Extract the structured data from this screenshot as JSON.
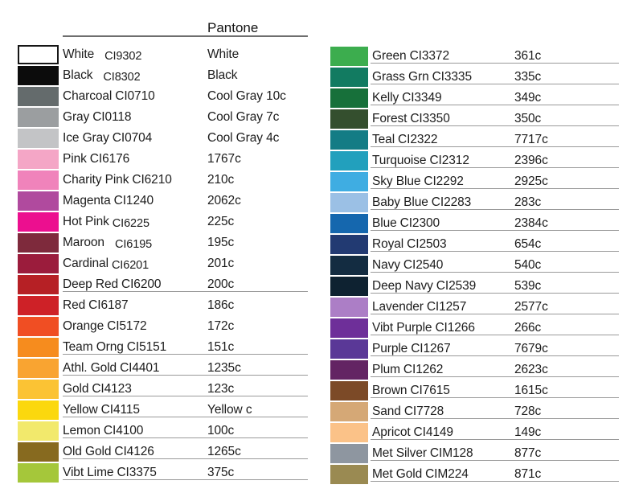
{
  "header": {
    "pantone_label": "Pantone"
  },
  "chart_data": {
    "type": "table",
    "title": "Pantone",
    "columns": [
      "swatch",
      "name",
      "ci_code",
      "pantone"
    ],
    "left_column": [
      {
        "name": "White",
        "code": "CI9302",
        "pantone": "White",
        "hex": "#ffffff",
        "border": true,
        "rule": false,
        "wide_gap": true,
        "code_drop": true
      },
      {
        "name": "Black",
        "code": "CI8302",
        "pantone": "Black",
        "hex": "#0c0c0c",
        "border": false,
        "rule": false,
        "wide_gap": true,
        "code_drop": true
      },
      {
        "name": "Charcoal",
        "code": "CI0710",
        "pantone": "Cool Gray 10c",
        "hex": "#646b6c",
        "border": false,
        "rule": false,
        "wide_gap": false,
        "code_drop": false
      },
      {
        "name": "Gray",
        "code": "CI0118",
        "pantone": "Cool Gray 7c",
        "hex": "#9b9ea0",
        "border": false,
        "rule": false,
        "wide_gap": false,
        "code_drop": false
      },
      {
        "name": "Ice Gray",
        "code": "CI0704",
        "pantone": "Cool Gray 4c",
        "hex": "#c3c4c6",
        "border": false,
        "rule": false,
        "wide_gap": false,
        "code_drop": false
      },
      {
        "name": "Pink",
        "code": "CI6176",
        "pantone": "1767c",
        "hex": "#f4a6c6",
        "border": false,
        "rule": false,
        "wide_gap": false,
        "code_drop": false
      },
      {
        "name": "Charity Pink",
        "code": "CI6210",
        "pantone": "210c",
        "hex": "#f083bb",
        "border": false,
        "rule": false,
        "wide_gap": false,
        "code_drop": false
      },
      {
        "name": "Magenta",
        "code": "CI1240",
        "pantone": "2062c",
        "hex": "#b04a9e",
        "border": false,
        "rule": false,
        "wide_gap": false,
        "code_drop": false
      },
      {
        "name": "Hot Pink",
        "code": "CI6225",
        "pantone": "225c",
        "hex": "#ec0f8f",
        "border": false,
        "rule": false,
        "wide_gap": false,
        "code_drop": true
      },
      {
        "name": "Maroon",
        "code": "CI6195",
        "pantone": "195c",
        "hex": "#7e2a3c",
        "border": false,
        "rule": false,
        "wide_gap": true,
        "code_drop": true
      },
      {
        "name": "Cardinal",
        "code": "CI6201",
        "pantone": "201c",
        "hex": "#9b1c3c",
        "border": false,
        "rule": false,
        "wide_gap": false,
        "code_drop": true
      },
      {
        "name": "Deep Red",
        "code": "CI6200",
        "pantone": "200c",
        "hex": "#b62025",
        "border": false,
        "rule": true,
        "wide_gap": false,
        "code_drop": false
      },
      {
        "name": "Red",
        "code": "CI6187",
        "pantone": "186c",
        "hex": "#ce2127",
        "border": false,
        "rule": false,
        "wide_gap": false,
        "code_drop": false
      },
      {
        "name": "Orange",
        "code": "CI5172",
        "pantone": "172c",
        "hex": "#f04e23",
        "border": false,
        "rule": false,
        "wide_gap": false,
        "code_drop": false
      },
      {
        "name": "Team Orng",
        "code": "CI5151",
        "pantone": "151c",
        "hex": "#f68c1e",
        "border": false,
        "rule": true,
        "wide_gap": false,
        "code_drop": false
      },
      {
        "name": "Athl. Gold",
        "code": "CI4401",
        "pantone": "1235c",
        "hex": "#f9a431",
        "border": false,
        "rule": true,
        "wide_gap": false,
        "code_drop": false
      },
      {
        "name": "Gold",
        "code": "CI4123",
        "pantone": "123c",
        "hex": "#fbc334",
        "border": false,
        "rule": true,
        "wide_gap": false,
        "code_drop": false
      },
      {
        "name": "Yellow",
        "code": "CI4115",
        "pantone": "Yellow c",
        "hex": "#fbd80e",
        "border": false,
        "rule": true,
        "wide_gap": false,
        "code_drop": false
      },
      {
        "name": "Lemon",
        "code": "CI4100",
        "pantone": "100c",
        "hex": "#f2e96c",
        "border": false,
        "rule": true,
        "wide_gap": false,
        "code_drop": false
      },
      {
        "name": "Old Gold",
        "code": "CI4126",
        "pantone": "1265c",
        "hex": "#876a1f",
        "border": false,
        "rule": true,
        "wide_gap": false,
        "code_drop": false
      },
      {
        "name": "Vibt Lime",
        "code": "CI3375",
        "pantone": "375c",
        "hex": "#a5c73a",
        "border": false,
        "rule": true,
        "wide_gap": false,
        "code_drop": false
      }
    ],
    "right_column": [
      {
        "name": "Green",
        "code": "CI3372",
        "pantone": "361c",
        "hex": "#3cad4e",
        "border": false,
        "rule": true,
        "wide_gap": false,
        "code_drop": false
      },
      {
        "name": "Grass Grn",
        "code": "CI3335",
        "pantone": "335c",
        "hex": "#127b61",
        "border": false,
        "rule": true,
        "wide_gap": false,
        "code_drop": false
      },
      {
        "name": "Kelly",
        "code": "CI3349",
        "pantone": "349c",
        "hex": "#17703a",
        "border": false,
        "rule": true,
        "wide_gap": false,
        "code_drop": false
      },
      {
        "name": "Forest",
        "code": "CI3350",
        "pantone": "350c",
        "hex": "#344f2e",
        "border": false,
        "rule": true,
        "wide_gap": false,
        "code_drop": false
      },
      {
        "name": "Teal",
        "code": "CI2322",
        "pantone": "7717c",
        "hex": "#137c85",
        "border": false,
        "rule": true,
        "wide_gap": false,
        "code_drop": false
      },
      {
        "name": "Turquoise",
        "code": "CI2312",
        "pantone": "2396c",
        "hex": "#22a0bd",
        "border": false,
        "rule": true,
        "wide_gap": false,
        "code_drop": false
      },
      {
        "name": "Sky Blue",
        "code": "CI2292",
        "pantone": "2925c",
        "hex": "#3fade2",
        "border": false,
        "rule": true,
        "wide_gap": false,
        "code_drop": false
      },
      {
        "name": "Baby Blue",
        "code": "CI2283",
        "pantone": "283c",
        "hex": "#9bc0e5",
        "border": false,
        "rule": true,
        "wide_gap": false,
        "code_drop": false
      },
      {
        "name": "Blue",
        "code": "CI2300",
        "pantone": "2384c",
        "hex": "#1567ae",
        "border": false,
        "rule": true,
        "wide_gap": false,
        "code_drop": false
      },
      {
        "name": "Royal",
        "code": "CI2503",
        "pantone": "654c",
        "hex": "#223a72",
        "border": false,
        "rule": true,
        "wide_gap": false,
        "code_drop": false
      },
      {
        "name": "Navy",
        "code": "CI2540",
        "pantone": "540c",
        "hex": "#132c41",
        "border": false,
        "rule": true,
        "wide_gap": false,
        "code_drop": false
      },
      {
        "name": "Deep Navy",
        "code": "CI2539",
        "pantone": "539c",
        "hex": "#0e2231",
        "border": false,
        "rule": true,
        "wide_gap": false,
        "code_drop": false
      },
      {
        "name": "Lavender",
        "code": "CI1257",
        "pantone": "2577c",
        "hex": "#ac7ec6",
        "border": false,
        "rule": true,
        "wide_gap": false,
        "code_drop": false
      },
      {
        "name": "Vibt Purple",
        "code": "CI1266",
        "pantone": "266c",
        "hex": "#6e2f99",
        "border": false,
        "rule": true,
        "wide_gap": false,
        "code_drop": false
      },
      {
        "name": "Purple",
        "code": "CI1267",
        "pantone": "7679c",
        "hex": "#5a3897",
        "border": false,
        "rule": true,
        "wide_gap": false,
        "code_drop": false
      },
      {
        "name": "Plum",
        "code": "CI1262",
        "pantone": "2623c",
        "hex": "#632463",
        "border": false,
        "rule": true,
        "wide_gap": false,
        "code_drop": false
      },
      {
        "name": "Brown",
        "code": "CI7615",
        "pantone": "1615c",
        "hex": "#7c4a27",
        "border": false,
        "rule": true,
        "wide_gap": false,
        "code_drop": false
      },
      {
        "name": "Sand",
        "code": "CI7728",
        "pantone": "728c",
        "hex": "#d5a876",
        "border": false,
        "rule": true,
        "wide_gap": false,
        "code_drop": false
      },
      {
        "name": "Apricot",
        "code": "CI4149",
        "pantone": "149c",
        "hex": "#fbc288",
        "border": false,
        "rule": true,
        "wide_gap": false,
        "code_drop": false
      },
      {
        "name": "Met Silver",
        "code": "CIM128",
        "pantone": "877c",
        "hex": "#8e96a0",
        "border": false,
        "rule": true,
        "wide_gap": false,
        "code_drop": false
      },
      {
        "name": "Met Gold",
        "code": "CIM224",
        "pantone": "871c",
        "hex": "#9a8a52",
        "border": false,
        "rule": true,
        "wide_gap": false,
        "code_drop": false
      }
    ],
    "layout_hints": {
      "header_rule_color": "#6e6e6e",
      "row_rule_color": "#9a9a9a",
      "white_swatch_border": "#161616"
    }
  }
}
